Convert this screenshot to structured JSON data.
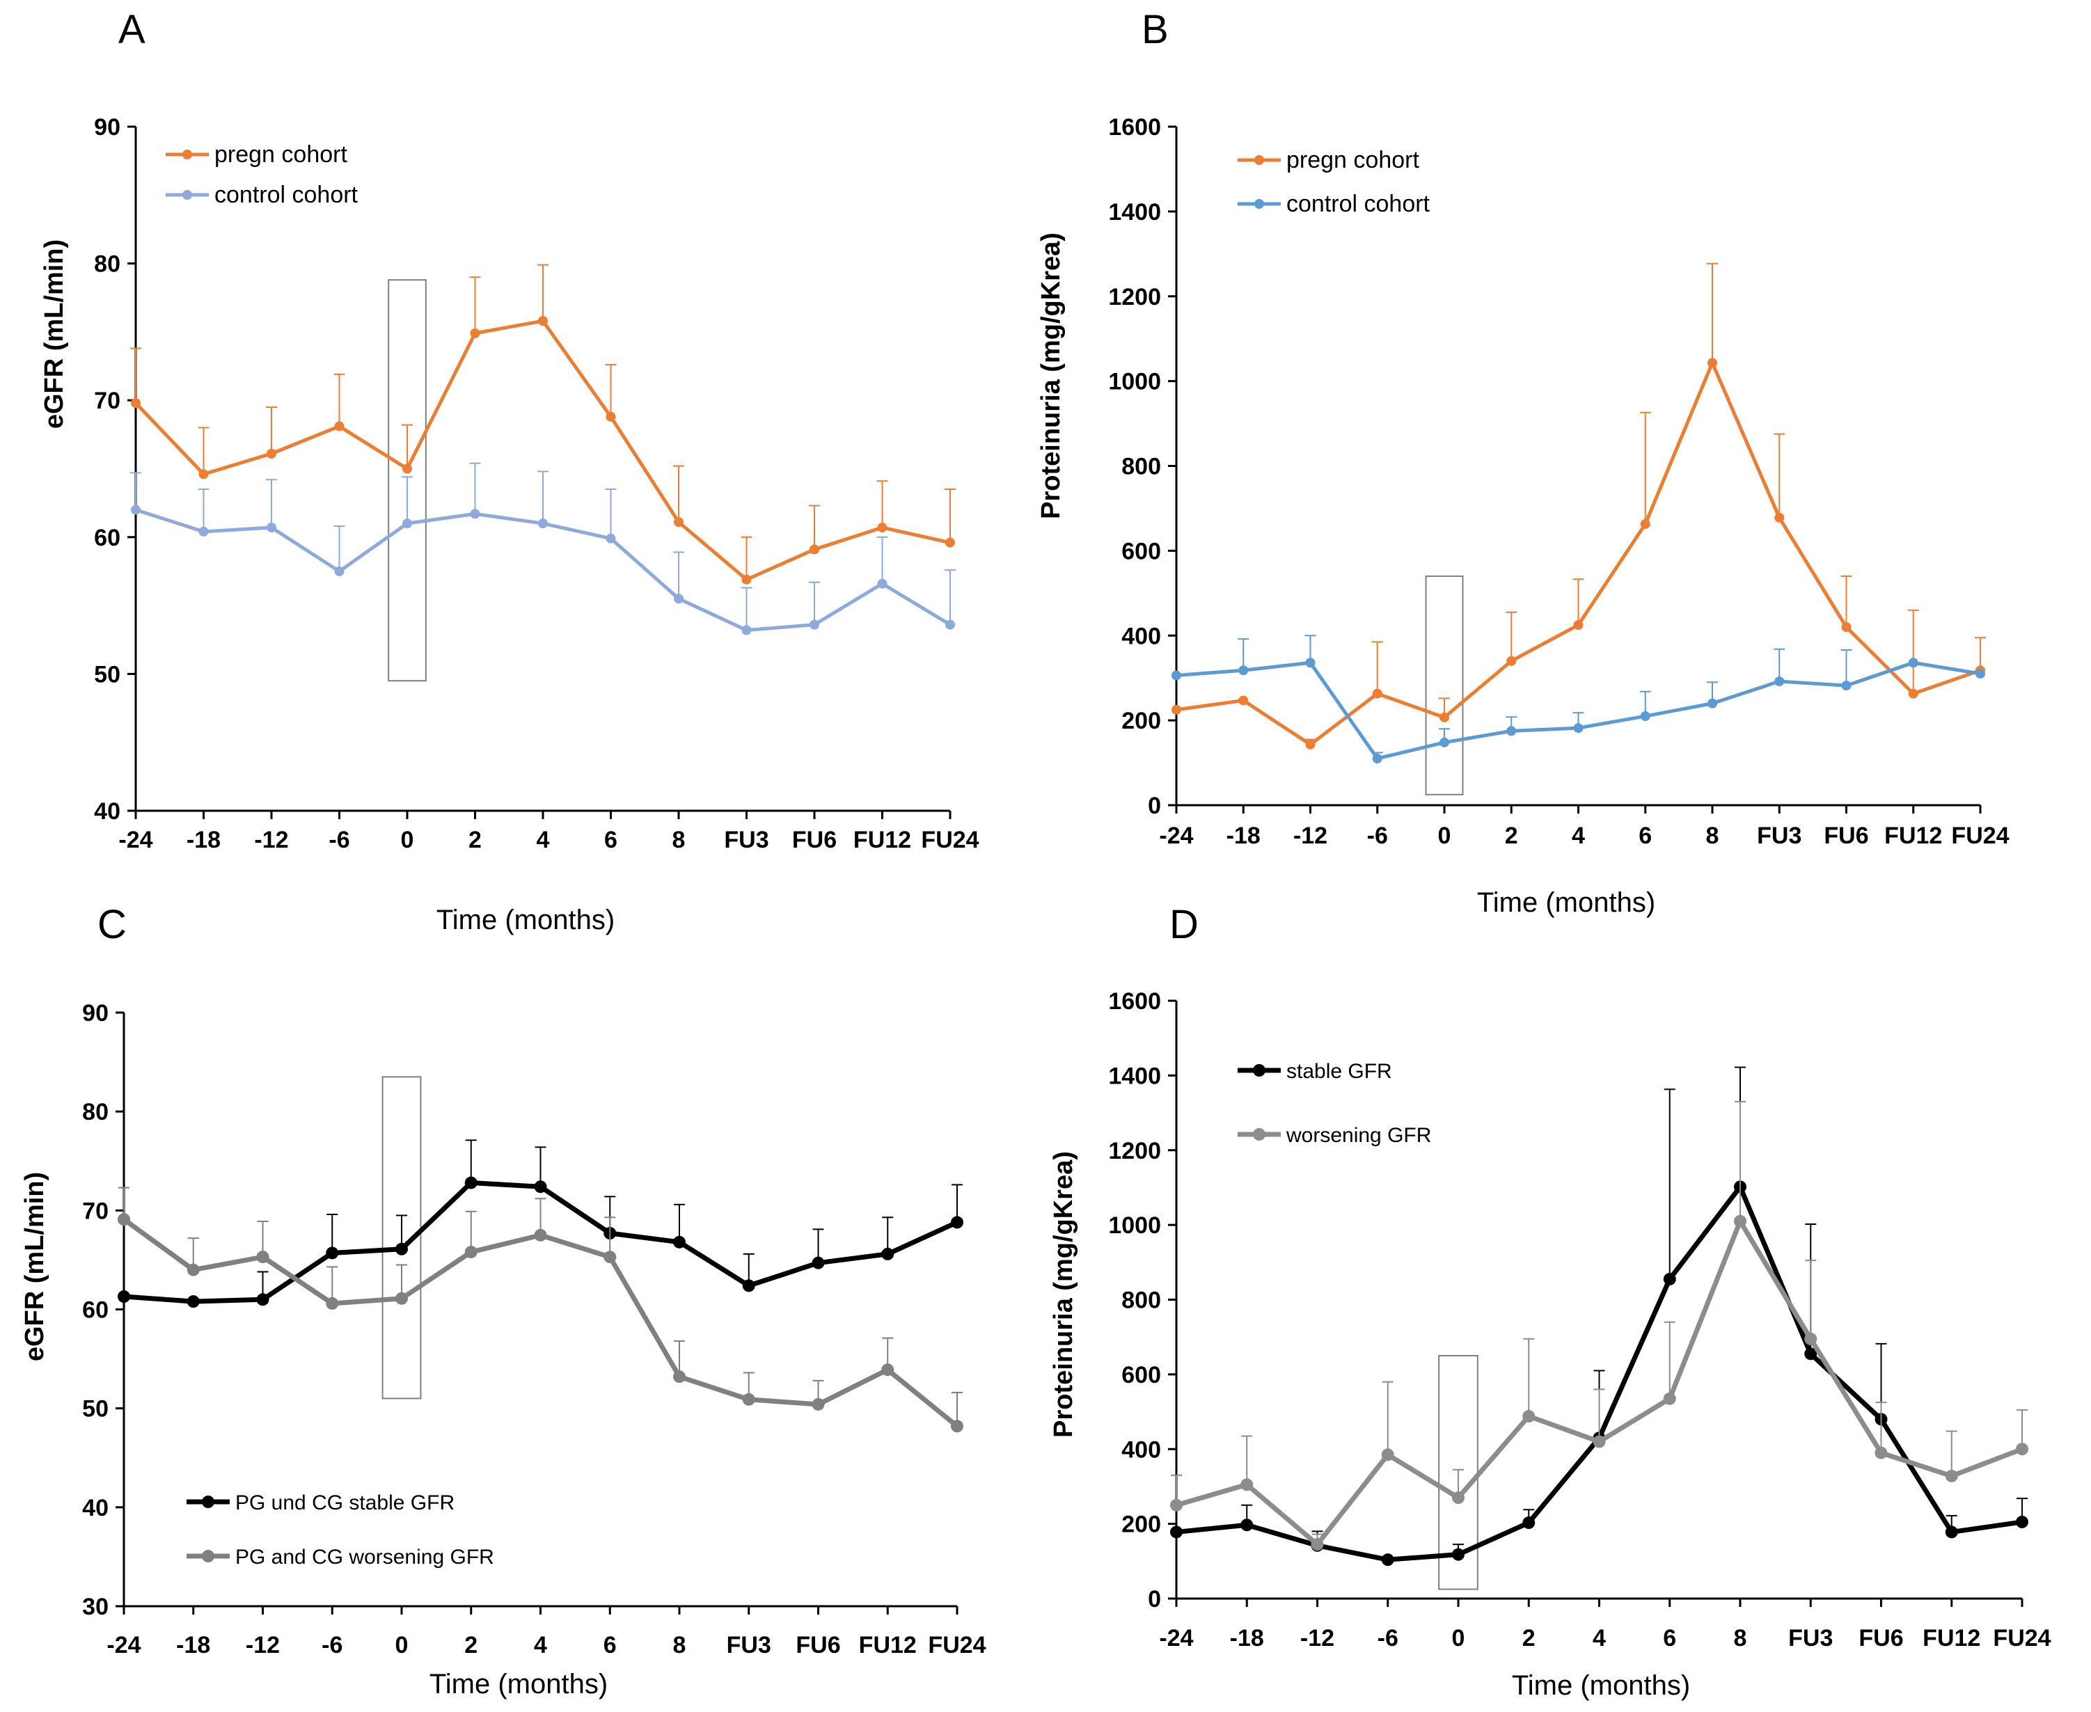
{
  "chart_data": [
    {
      "panel": "A",
      "type": "line",
      "title": "",
      "xlabel": "Time (months)",
      "ylabel": "eGFR (mL/min)",
      "ylim": [
        40,
        90
      ],
      "yticks": [
        40,
        50,
        60,
        70,
        80,
        90
      ],
      "categories": [
        "-24",
        "-18",
        "-12",
        "-6",
        "0",
        "2",
        "4",
        "6",
        "8",
        "FU3",
        "FU6",
        "FU12",
        "FU24"
      ],
      "legend_position": "top-left",
      "highlight_box": {
        "category": "0",
        "y_range": [
          49.5,
          78.8
        ]
      },
      "series": [
        {
          "name": "pregn cohort",
          "color": "#ED7D31",
          "marker": "circle",
          "values": [
            69.8,
            64.6,
            66.1,
            68.1,
            65.0,
            74.9,
            75.8,
            68.8,
            61.1,
            56.9,
            59.1,
            60.7,
            59.6
          ],
          "error_upper": [
            73.8,
            68.0,
            69.5,
            71.9,
            68.2,
            79.0,
            79.9,
            72.6,
            65.2,
            60.0,
            62.3,
            64.1,
            63.5
          ]
        },
        {
          "name": "control cohort",
          "color": "#8EA9DB",
          "marker": "circle",
          "values": [
            62.0,
            60.4,
            60.7,
            57.5,
            61.0,
            61.7,
            61.0,
            59.9,
            55.5,
            53.2,
            53.6,
            56.6,
            53.6
          ],
          "error_upper": [
            64.7,
            63.5,
            64.2,
            60.8,
            64.4,
            65.4,
            64.8,
            63.5,
            58.9,
            56.3,
            56.7,
            60.0,
            57.6
          ]
        }
      ]
    },
    {
      "panel": "B",
      "type": "line",
      "title": "",
      "xlabel": "Time (months)",
      "ylabel": "Proteinuria (mg/gKrea)",
      "ylim": [
        0,
        1600
      ],
      "yticks": [
        0,
        200,
        400,
        600,
        800,
        1000,
        1200,
        1400,
        1600
      ],
      "categories": [
        "-24",
        "-18",
        "-12",
        "-6",
        "0",
        "2",
        "4",
        "6",
        "8",
        "FU3",
        "FU6",
        "FU12",
        "FU24"
      ],
      "legend_position": "top-left",
      "highlight_box": {
        "category": "0",
        "y_range": [
          25,
          540
        ]
      },
      "series": [
        {
          "name": "pregn cohort",
          "color": "#ED7D31",
          "marker": "circle",
          "values": [
            225,
            247,
            143,
            263,
            207,
            340,
            425,
            663,
            1043,
            678,
            420,
            263,
            318
          ],
          "error_upper": [
            null,
            null,
            155,
            385,
            252,
            455,
            533,
            926,
            1277,
            875,
            540,
            460,
            395
          ]
        },
        {
          "name": "control cohort",
          "color": "#5B9BD5",
          "marker": "circle",
          "values": [
            306,
            318,
            336,
            110,
            148,
            175,
            182,
            210,
            240,
            292,
            282,
            336,
            310
          ],
          "error_upper": [
            null,
            392,
            400,
            124,
            180,
            208,
            218,
            268,
            290,
            368,
            366,
            null,
            null
          ]
        }
      ]
    },
    {
      "panel": "C",
      "type": "line",
      "title": "",
      "xlabel": "Time (months)",
      "ylabel": "eGFR (mL/min)",
      "ylim": [
        30,
        90
      ],
      "yticks": [
        30,
        40,
        50,
        60,
        70,
        80,
        90
      ],
      "categories": [
        "-24",
        "-18",
        "-12",
        "-6",
        "0",
        "2",
        "4",
        "6",
        "8",
        "FU3",
        "FU6",
        "FU12",
        "FU24"
      ],
      "legend_position": "bottom-left",
      "highlight_box": {
        "category": "0",
        "y_range": [
          51.0,
          83.5
        ]
      },
      "series": [
        {
          "name": "PG und CG stable GFR",
          "color": "#000000",
          "marker": "circle",
          "values": [
            61.3,
            60.8,
            61.0,
            65.7,
            66.1,
            72.8,
            72.4,
            67.7,
            66.8,
            62.4,
            64.7,
            65.6,
            68.8
          ],
          "error_upper": [
            null,
            60.9,
            63.8,
            69.6,
            69.5,
            77.1,
            76.4,
            71.4,
            70.6,
            65.6,
            68.1,
            69.3,
            72.6
          ]
        },
        {
          "name": "PG and CG worsening GFR",
          "color": "#808080",
          "marker": "circle",
          "values": [
            69.1,
            64.0,
            65.3,
            60.6,
            61.1,
            65.8,
            67.5,
            65.3,
            53.2,
            50.9,
            50.4,
            53.9,
            48.2
          ],
          "error_upper": [
            72.3,
            67.2,
            68.9,
            64.3,
            64.5,
            69.9,
            71.2,
            69.3,
            56.8,
            53.6,
            52.8,
            57.1,
            51.6
          ]
        }
      ]
    },
    {
      "panel": "D",
      "type": "line",
      "title": "",
      "xlabel": "Time (months)",
      "ylabel": "Proteinuria (mg/gKrea)",
      "ylim": [
        0,
        1600
      ],
      "yticks": [
        0,
        200,
        400,
        600,
        800,
        1000,
        1200,
        1400,
        1600
      ],
      "categories": [
        "-24",
        "-18",
        "-12",
        "-6",
        "0",
        "2",
        "4",
        "6",
        "8",
        "FU3",
        "FU6",
        "FU12",
        "FU24"
      ],
      "legend_position": "top-left",
      "highlight_box": {
        "category": "0",
        "y_range": [
          25,
          650
        ]
      },
      "series": [
        {
          "name": "stable GFR",
          "color": "#000000",
          "marker": "circle",
          "values": [
            178,
            197,
            142,
            104,
            118,
            203,
            430,
            855,
            1102,
            655,
            480,
            178,
            205
          ],
          "error_upper": [
            null,
            250,
            180,
            null,
            145,
            238,
            610,
            1363,
            1422,
            1002,
            682,
            222,
            268
          ]
        },
        {
          "name": "worsening GFR",
          "color": "#8C8C8C",
          "marker": "circle",
          "values": [
            250,
            305,
            145,
            385,
            270,
            488,
            420,
            535,
            1010,
            695,
            390,
            328,
            400
          ],
          "error_upper": [
            330,
            435,
            172,
            580,
            345,
            695,
            560,
            740,
            1330,
            905,
            525,
            448,
            505
          ]
        }
      ]
    }
  ]
}
